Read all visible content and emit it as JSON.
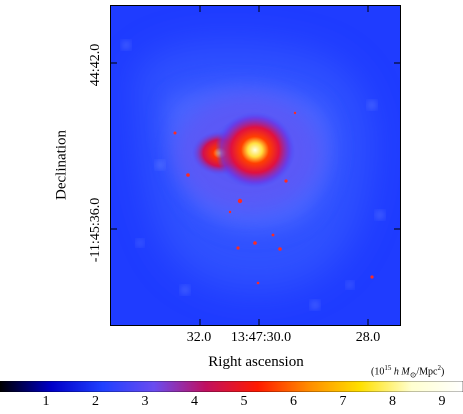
{
  "axes": {
    "ylabel": "Declination",
    "xlabel": "Right ascension",
    "yticks": [
      {
        "label": "-11:44:42.0",
        "display": "44:42.0"
      },
      {
        "label": "-11:45:36.0",
        "display": "-11:45:36.0"
      }
    ],
    "xticks": [
      "32.0",
      "13:47:30.0",
      "28.0"
    ]
  },
  "colorbar": {
    "unit": "(10¹⁵ h M⊙/Mpc²)",
    "unit_parts": {
      "pre": "(10",
      "exp": "15",
      "mid": " h M",
      "sym": "⊙",
      "post": "/Mpc",
      "sq": "2",
      "close": ")"
    },
    "ticks": [
      "1",
      "2",
      "3",
      "4",
      "5",
      "6",
      "7",
      "8",
      "9"
    ],
    "range": [
      0,
      10
    ],
    "colors": [
      "#000000",
      "#0000c8",
      "#2040ff",
      "#6a4cf0",
      "#c01060",
      "#ff1a00",
      "#ff8c00",
      "#ffe000",
      "#ffffd0",
      "#ffffff"
    ]
  },
  "image": {
    "description_colors": {
      "background": "#1a36ff",
      "core": "#ffffa0",
      "halo": "#ff2000"
    }
  }
}
